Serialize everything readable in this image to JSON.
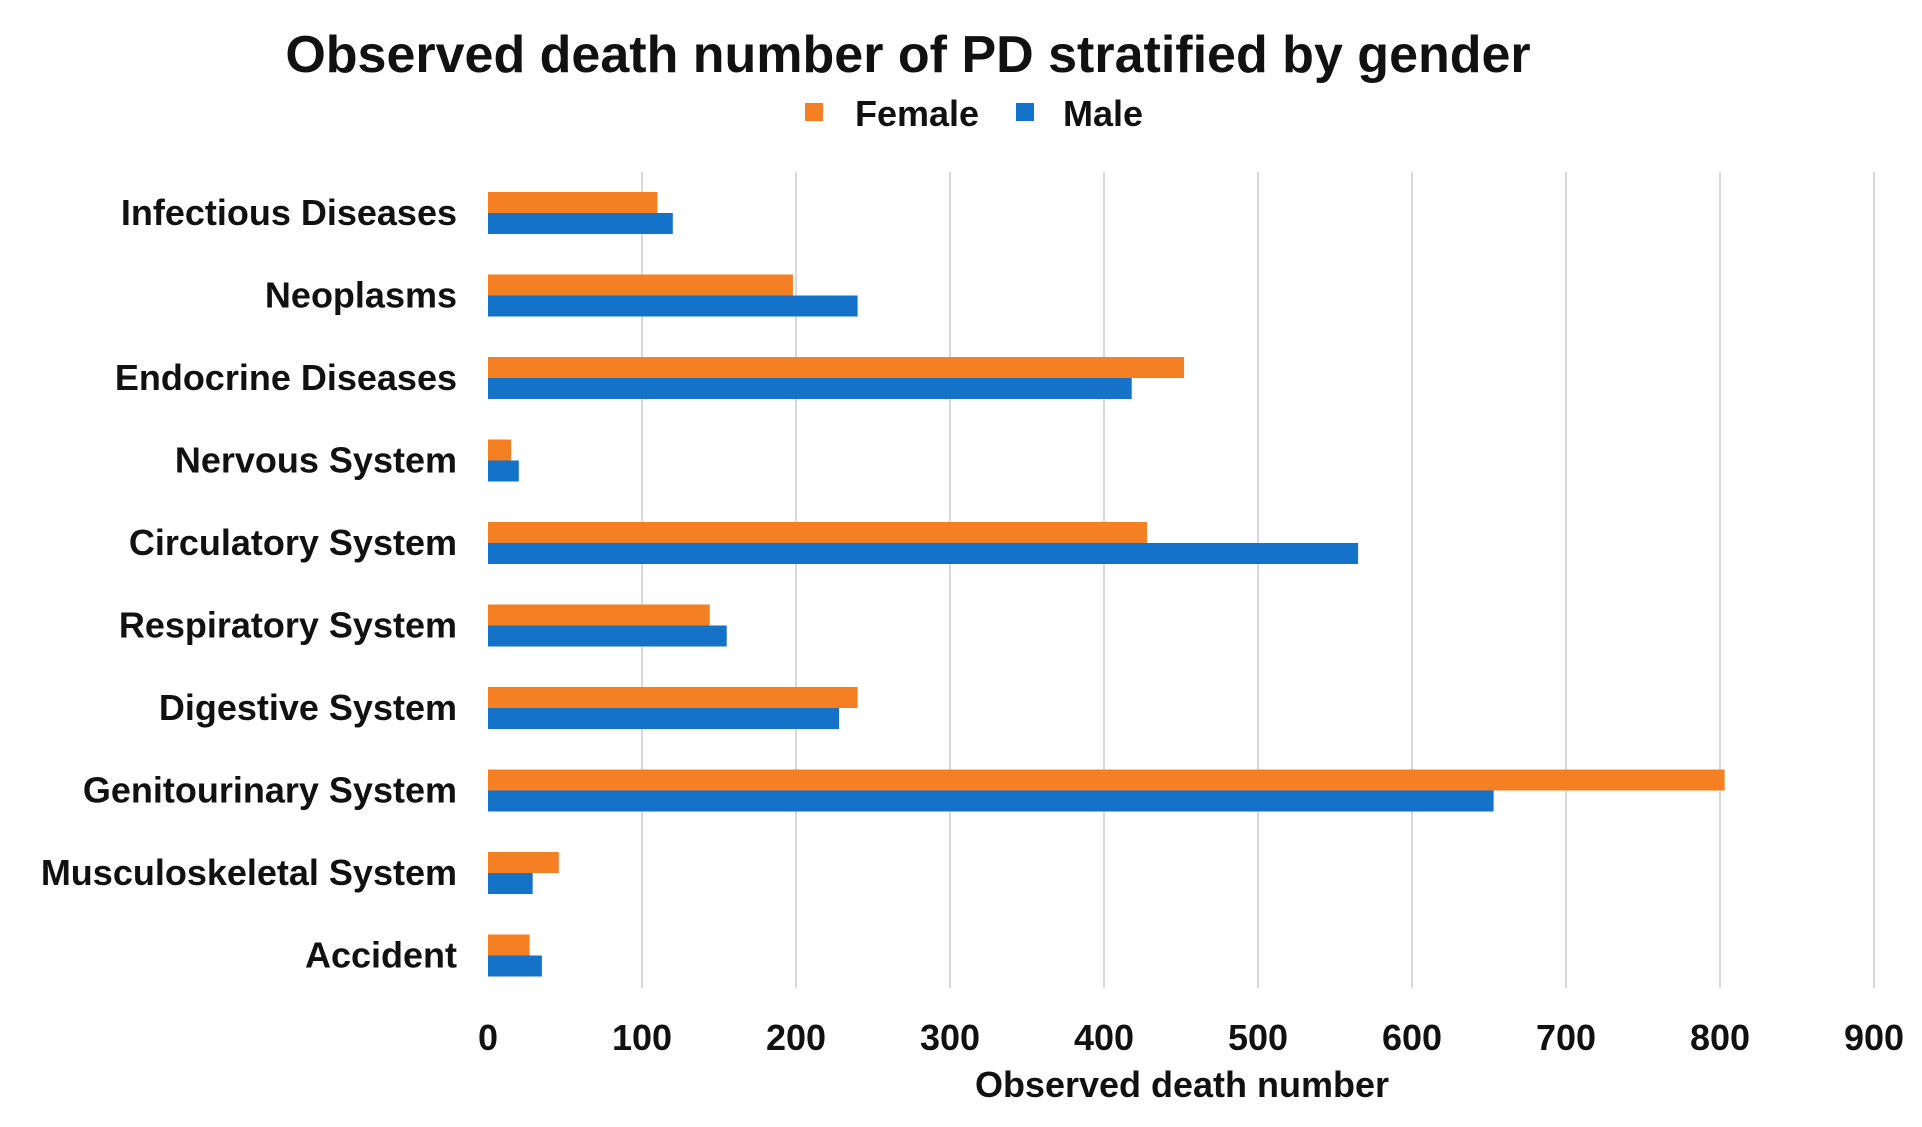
{
  "chart_data": {
    "type": "bar",
    "orientation": "horizontal",
    "title": "Observed death number of PD stratified by gender",
    "xlabel": "Observed death number",
    "ylabel": "",
    "xlim": [
      0,
      900
    ],
    "xticks": [
      0,
      100,
      200,
      300,
      400,
      500,
      600,
      700,
      800,
      900
    ],
    "grid": true,
    "legend_position": "top-center",
    "categories": [
      "Infectious Diseases",
      "Neoplasms",
      "Endocrine Diseases",
      "Nervous System",
      "Circulatory System",
      "Respiratory System",
      "Digestive System",
      "Genitourinary System",
      "Musculoskeletal System",
      "Accident"
    ],
    "series": [
      {
        "name": "Female",
        "color": "#F58023",
        "values": [
          110,
          198,
          452,
          15,
          428,
          144,
          240,
          803,
          46,
          27
        ]
      },
      {
        "name": "Male",
        "color": "#1472C9",
        "values": [
          120,
          240,
          418,
          20,
          565,
          155,
          228,
          653,
          29,
          35
        ]
      }
    ]
  }
}
